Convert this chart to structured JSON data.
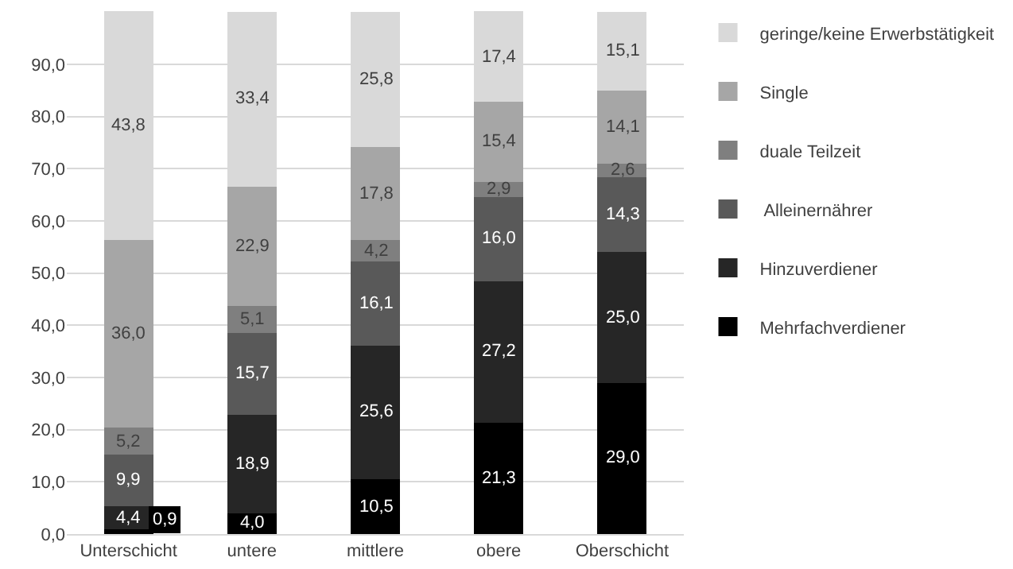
{
  "chart_data": {
    "type": "bar",
    "stacked": true,
    "categories": [
      "Unterschicht",
      "untere",
      "mittlere",
      "obere",
      "Oberschicht"
    ],
    "series": [
      {
        "name": "Mehrfachverdiener",
        "color": "#000000",
        "values": [
          0.9,
          4.0,
          10.5,
          21.3,
          29.0
        ],
        "value_labels": [
          "0,9",
          "4,0",
          "10,5",
          "21,3",
          "29,0"
        ]
      },
      {
        "name": "Hinzuverdiener",
        "color": "#262626",
        "values": [
          4.4,
          18.9,
          25.6,
          27.2,
          25.0
        ],
        "value_labels": [
          "4,4",
          "18,9",
          "25,6",
          "27,2",
          "25,0"
        ]
      },
      {
        "name": " Alleinernährer",
        "color": "#595959",
        "values": [
          9.9,
          15.7,
          16.1,
          16.0,
          14.3
        ],
        "value_labels": [
          "9,9",
          "15,7",
          "16,1",
          "16,0",
          "14,3"
        ]
      },
      {
        "name": "duale Teilzeit",
        "color": "#7f7f7f",
        "values": [
          5.2,
          5.1,
          4.2,
          2.9,
          2.6
        ],
        "value_labels": [
          "5,2",
          "5,1",
          "4,2",
          "2,9",
          "2,6"
        ]
      },
      {
        "name": "Single",
        "color": "#a6a6a6",
        "values": [
          36.0,
          22.9,
          17.8,
          15.4,
          14.1
        ],
        "value_labels": [
          "36,0",
          "22,9",
          "17,8",
          "15,4",
          "14,1"
        ]
      },
      {
        "name": "geringe/keine Erwerbstätigkeit",
        "color": "#d9d9d9",
        "values": [
          43.8,
          33.4,
          25.8,
          17.4,
          15.1
        ],
        "value_labels": [
          "43,8",
          "33,4",
          "25,8",
          "17,4",
          "15,1"
        ]
      }
    ],
    "ylim": [
      0,
      100.5
    ],
    "yticks": [
      {
        "value": 0,
        "label": "0,0"
      },
      {
        "value": 10,
        "label": "10,0"
      },
      {
        "value": 20,
        "label": "20,0"
      },
      {
        "value": 30,
        "label": "30,0"
      },
      {
        "value": 40,
        "label": "40,0"
      },
      {
        "value": 50,
        "label": "50,0"
      },
      {
        "value": 60,
        "label": "60,0"
      },
      {
        "value": 70,
        "label": "70,0"
      },
      {
        "value": 80,
        "label": "80,0"
      },
      {
        "value": 90,
        "label": "90,0"
      }
    ],
    "grid": "y",
    "legend": "right"
  }
}
